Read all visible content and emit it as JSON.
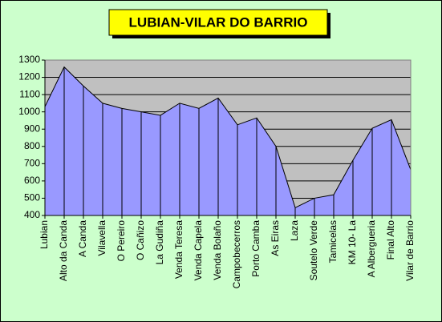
{
  "chart_data": {
    "type": "area",
    "title": "LUBIAN-VILAR DO BARRIO",
    "categories": [
      "Lubian",
      "Alto da Canda",
      "A Canda",
      "Vilavella",
      "O Pereiro",
      "O Cañizo",
      "La Gudiña",
      "Venda Teresa",
      "Venda Capela",
      "Venda Bolaño",
      "Campobecerros",
      "Porto Camba",
      "As Eiras",
      "Laza",
      "Soutelo Verde",
      "Tamicelas",
      "KM 10- La",
      "A Albergueria",
      "Final Alto",
      "Vilar de Barrio"
    ],
    "values": [
      1030,
      1260,
      1150,
      1050,
      1020,
      1000,
      980,
      1050,
      1020,
      1080,
      925,
      965,
      800,
      445,
      500,
      520,
      720,
      905,
      955,
      665
    ],
    "color": "#9999ff",
    "ylim": [
      400,
      1300
    ],
    "yticks": [
      400,
      500,
      600,
      700,
      800,
      900,
      1000,
      1100,
      1200,
      1300
    ],
    "grid": true
  }
}
